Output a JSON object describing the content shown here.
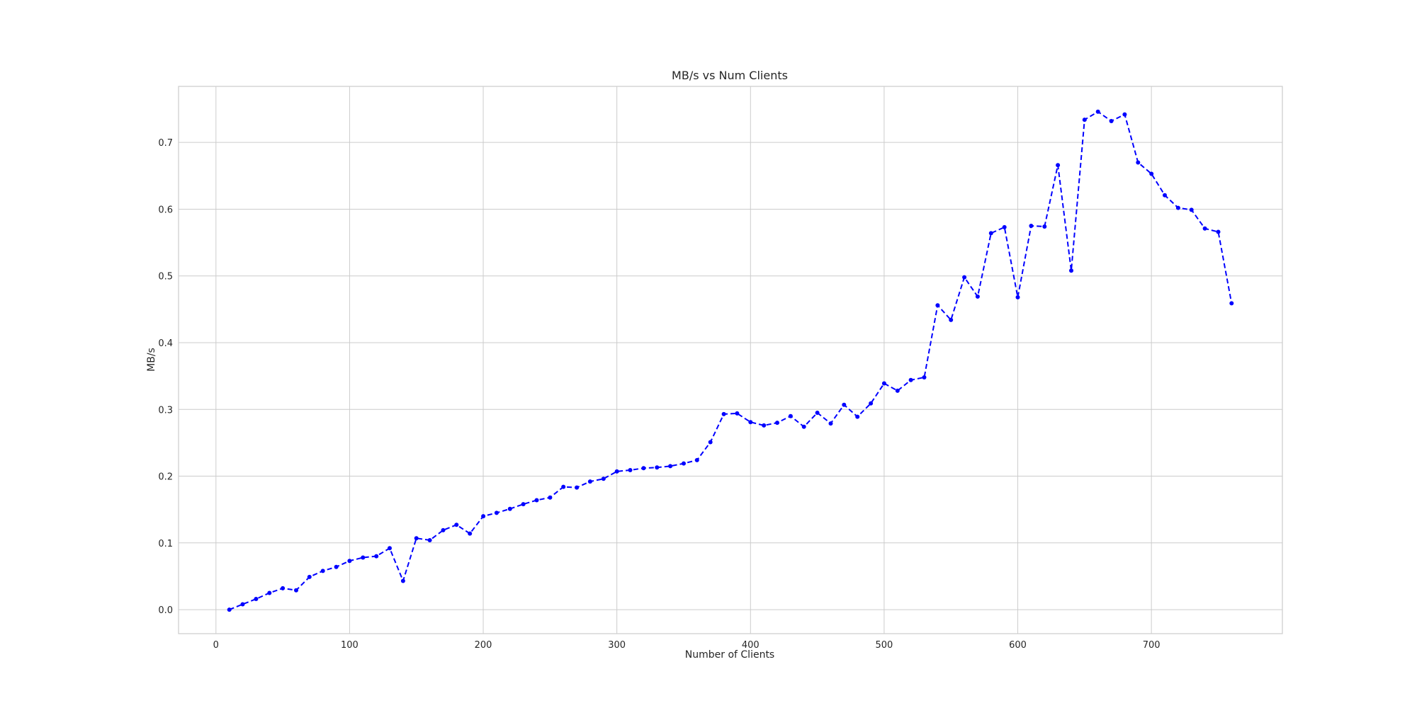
{
  "chart_data": {
    "type": "line",
    "title": "MB/s vs Num Clients",
    "xlabel": "Number of Clients",
    "ylabel": "MB/s",
    "xlim": [
      -28,
      798
    ],
    "ylim": [
      -0.036,
      0.784
    ],
    "x_ticks": [
      0,
      100,
      200,
      300,
      400,
      500,
      600,
      700
    ],
    "y_ticks": [
      0.0,
      0.1,
      0.2,
      0.3,
      0.4,
      0.5,
      0.6,
      0.7
    ],
    "x_tick_labels": [
      "0",
      "100",
      "200",
      "300",
      "400",
      "500",
      "600",
      "700"
    ],
    "y_tick_labels": [
      "0.0",
      "0.1",
      "0.2",
      "0.3",
      "0.4",
      "0.5",
      "0.6",
      "0.7"
    ],
    "grid": true,
    "line_style": "dashed",
    "marker": "circle",
    "series_color": "#0000ff",
    "grid_color": "#cccccc",
    "frame_color": "#cccccc",
    "series": [
      {
        "x": [
          10,
          20,
          30,
          40,
          50,
          60,
          70,
          80,
          90,
          100,
          110,
          120,
          130,
          140,
          150,
          160,
          170,
          180,
          190,
          200,
          210,
          220,
          230,
          240,
          250,
          260,
          270,
          280,
          290,
          300,
          310,
          320,
          330,
          340,
          350,
          360,
          370,
          380,
          390,
          400,
          410,
          420,
          430,
          440,
          450,
          460,
          470,
          480,
          490,
          500,
          510,
          520,
          530,
          540,
          550,
          560,
          570,
          580,
          590,
          600,
          610,
          620,
          630,
          640,
          650,
          660,
          670,
          680,
          690,
          700,
          710,
          720,
          730,
          740,
          750,
          760
        ],
        "values": [
          0.0,
          0.008,
          0.016,
          0.025,
          0.032,
          0.029,
          0.049,
          0.058,
          0.064,
          0.073,
          0.078,
          0.08,
          0.092,
          0.043,
          0.107,
          0.104,
          0.119,
          0.127,
          0.114,
          0.14,
          0.145,
          0.151,
          0.158,
          0.164,
          0.168,
          0.184,
          0.183,
          0.192,
          0.196,
          0.207,
          0.209,
          0.212,
          0.213,
          0.215,
          0.219,
          0.224,
          0.251,
          0.293,
          0.294,
          0.281,
          0.276,
          0.28,
          0.29,
          0.274,
          0.295,
          0.279,
          0.307,
          0.289,
          0.309,
          0.339,
          0.328,
          0.344,
          0.348,
          0.456,
          0.434,
          0.498,
          0.469,
          0.564,
          0.573,
          0.468,
          0.575,
          0.574,
          0.666,
          0.508,
          0.734,
          0.746,
          0.732,
          0.742,
          0.67,
          0.653,
          0.621,
          0.602,
          0.599,
          0.571,
          0.566,
          0.459
        ]
      }
    ]
  }
}
